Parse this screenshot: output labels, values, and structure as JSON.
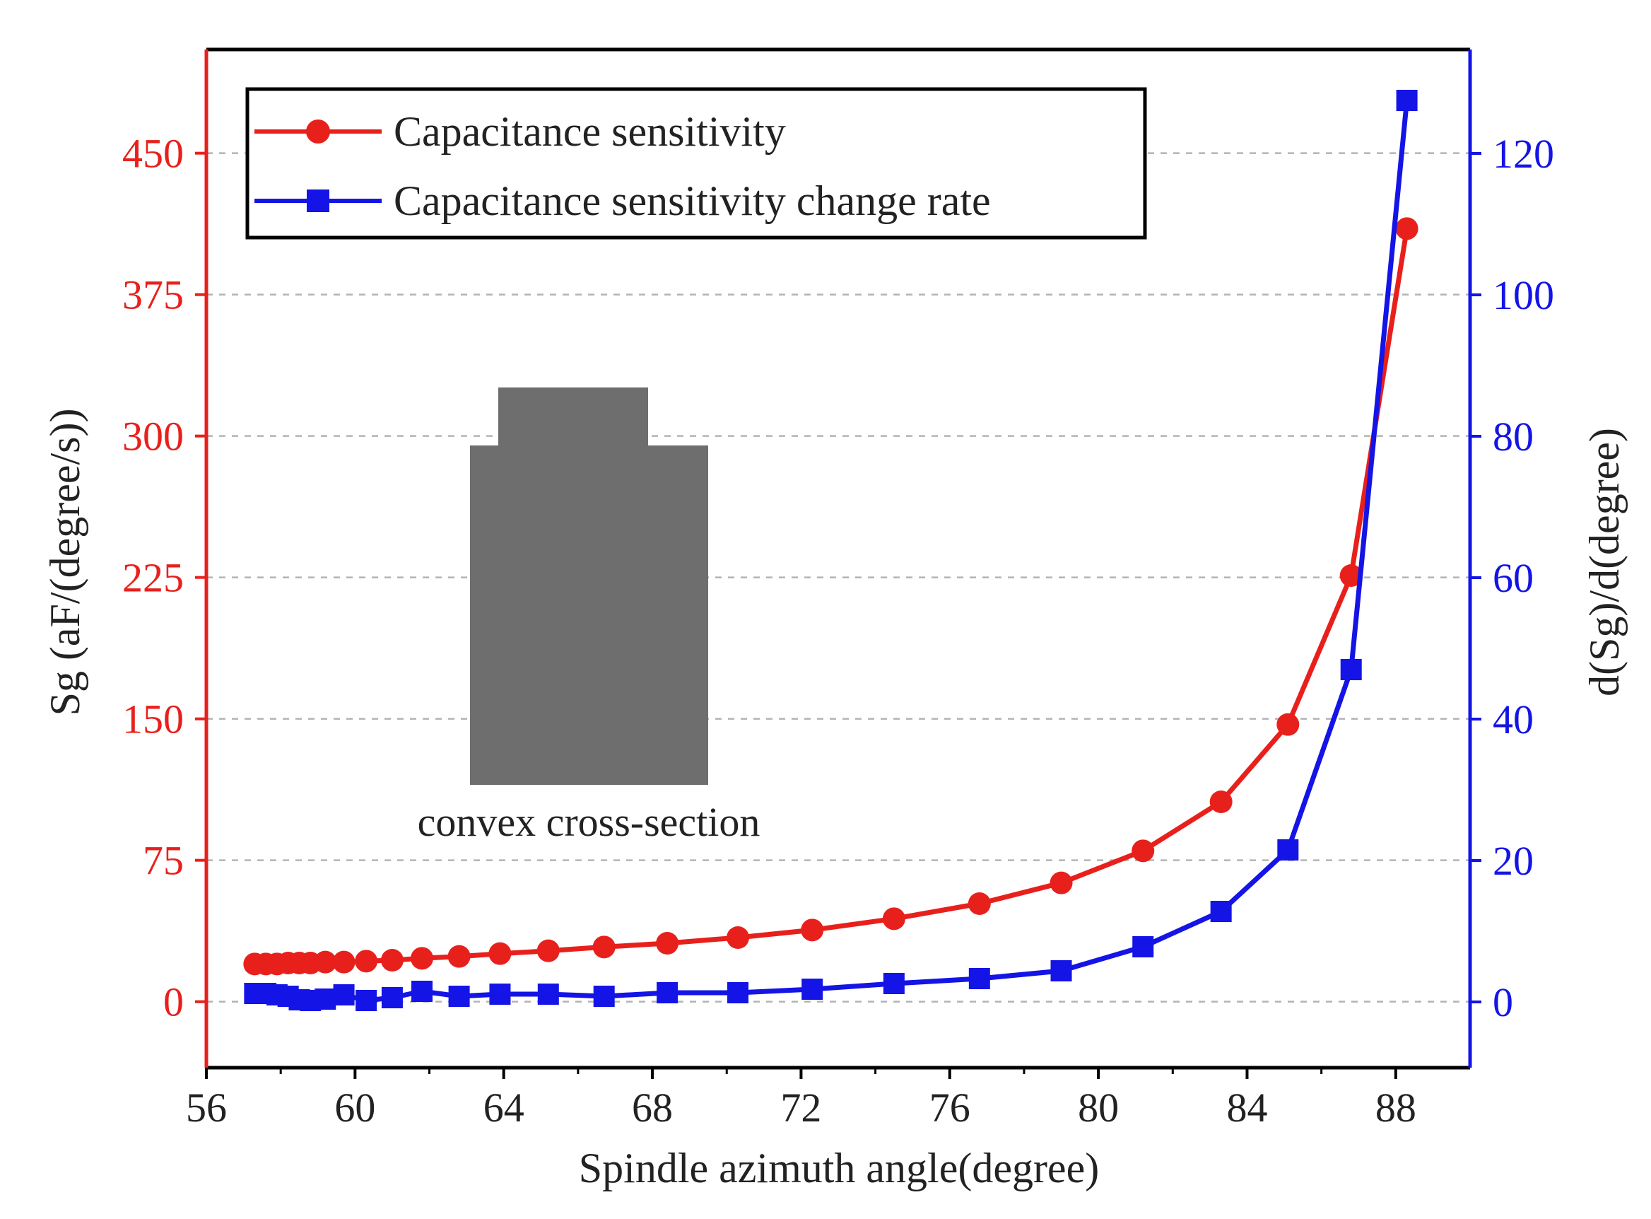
{
  "colors": {
    "left_axis": "#e8201c",
    "right_axis": "#1414e6",
    "frame": "#000000",
    "grid": "#b4b4b4",
    "inset_shape": "#6e6e6e",
    "label_text": "#222222"
  },
  "inset": {
    "label": "convex cross-section"
  },
  "chart_data": {
    "type": "line",
    "title": "",
    "xlabel": "Spindle azimuth angle(degree)",
    "ylabel_left": "Sg (aF/(degree/s))",
    "ylabel_right": "d(Sg)/d(degree)",
    "xlim": [
      56,
      90
    ],
    "ylim_left": [
      -35,
      505
    ],
    "ylim_right": [
      -9.3,
      134.7
    ],
    "x_ticks": [
      "56",
      "60",
      "64",
      "68",
      "72",
      "76",
      "80",
      "84",
      "88"
    ],
    "y_left_ticks": [
      "0",
      "75",
      "150",
      "225",
      "300",
      "375",
      "450"
    ],
    "y_right_ticks": [
      "0",
      "20",
      "40",
      "60",
      "80",
      "100",
      "120"
    ],
    "grid": "horizontal dashed",
    "legend_position": "top-left",
    "series": [
      {
        "name": "Capacitance sensitivity",
        "axis": "left",
        "color": "#e8201c",
        "marker": "circle",
        "x": [
          57.3,
          57.6,
          57.9,
          58.2,
          58.5,
          58.8,
          59.2,
          59.7,
          60.3,
          61.0,
          61.8,
          62.8,
          63.9,
          65.2,
          66.7,
          68.4,
          70.3,
          72.3,
          74.5,
          76.8,
          79.0,
          81.2,
          83.3,
          85.1,
          86.8,
          88.3
        ],
        "y": [
          20,
          20,
          20,
          20.5,
          20.5,
          20.5,
          21,
          21,
          21.5,
          22,
          23,
          24,
          25.5,
          27,
          29,
          31,
          34,
          38,
          44,
          52,
          63,
          80,
          106,
          147,
          226,
          410
        ]
      },
      {
        "name": "Capacitance sensitivity change rate",
        "axis": "right",
        "color": "#1414e6",
        "marker": "square",
        "x": [
          57.3,
          57.6,
          57.9,
          58.2,
          58.5,
          58.8,
          59.2,
          59.7,
          60.3,
          61.0,
          61.8,
          62.8,
          63.9,
          65.2,
          66.7,
          68.4,
          70.3,
          72.3,
          74.5,
          76.8,
          79.0,
          81.2,
          83.3,
          85.1,
          86.8,
          88.3
        ],
        "y": [
          1.2,
          1.2,
          1.0,
          0.8,
          0.3,
          0.2,
          0.4,
          1.0,
          0.2,
          0.6,
          1.5,
          0.8,
          1.1,
          1.1,
          0.8,
          1.3,
          1.3,
          1.8,
          2.6,
          3.3,
          4.4,
          7.8,
          12.8,
          21.5,
          47.0,
          127.5
        ]
      }
    ]
  }
}
